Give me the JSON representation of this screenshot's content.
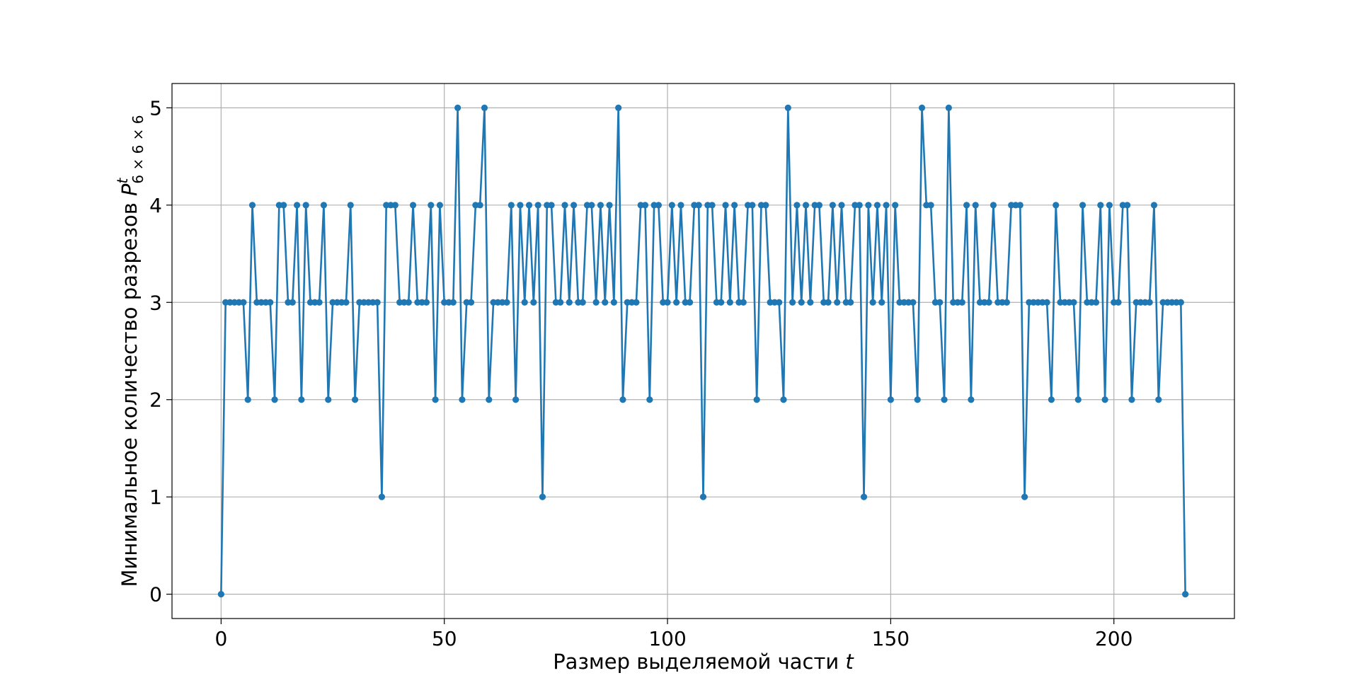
{
  "chart_data": {
    "type": "line",
    "title": "",
    "xlabel": {
      "main": "Размер выделяемой части ",
      "var": "t"
    },
    "ylabel": {
      "main": "Минимальное количество разрезов ",
      "var": "P",
      "superscript": "t",
      "subscript": "6 × 6 × 6"
    },
    "xlim": [
      -11,
      227
    ],
    "ylim": [
      -0.25,
      5.25
    ],
    "xticks": [
      0,
      50,
      100,
      150,
      200
    ],
    "yticks": [
      0,
      1,
      2,
      3,
      4,
      5
    ],
    "grid": true,
    "marker": "circle",
    "color": "#1f77b4",
    "series": [
      {
        "x_start": 0,
        "x_step": 1,
        "values": [
          0,
          3,
          3,
          3,
          3,
          3,
          2,
          4,
          3,
          3,
          3,
          3,
          2,
          4,
          4,
          3,
          3,
          4,
          2,
          4,
          3,
          3,
          3,
          4,
          2,
          3,
          3,
          3,
          3,
          4,
          2,
          3,
          3,
          3,
          3,
          3,
          1,
          4,
          4,
          4,
          3,
          3,
          3,
          4,
          3,
          3,
          3,
          4,
          2,
          4,
          3,
          3,
          3,
          5,
          2,
          3,
          3,
          4,
          4,
          5,
          2,
          3,
          3,
          3,
          3,
          4,
          2,
          4,
          3,
          4,
          3,
          4,
          1,
          4,
          4,
          3,
          3,
          4,
          3,
          4,
          3,
          3,
          4,
          4,
          3,
          4,
          3,
          4,
          3,
          5,
          2,
          3,
          3,
          3,
          4,
          4,
          2,
          4,
          4,
          3,
          3,
          4,
          3,
          4,
          3,
          3,
          4,
          4,
          1,
          4,
          4,
          3,
          3,
          4,
          3,
          4,
          3,
          3,
          4,
          4,
          2,
          4,
          4,
          3,
          3,
          3,
          2,
          5,
          3,
          4,
          3,
          4,
          3,
          4,
          4,
          3,
          3,
          4,
          3,
          4,
          3,
          3,
          4,
          4,
          1,
          4,
          3,
          4,
          3,
          4,
          2,
          4,
          3,
          3,
          3,
          3,
          2,
          5,
          4,
          4,
          3,
          3,
          2,
          5,
          3,
          3,
          3,
          4,
          2,
          4,
          3,
          3,
          3,
          4,
          3,
          3,
          3,
          4,
          4,
          4,
          1,
          3,
          3,
          3,
          3,
          3,
          2,
          4,
          3,
          3,
          3,
          3,
          2,
          4,
          3,
          3,
          3,
          4,
          2,
          4,
          3,
          3,
          4,
          4,
          2,
          3,
          3,
          3,
          3,
          4,
          2,
          3,
          3,
          3,
          3,
          3,
          0
        ]
      }
    ]
  }
}
